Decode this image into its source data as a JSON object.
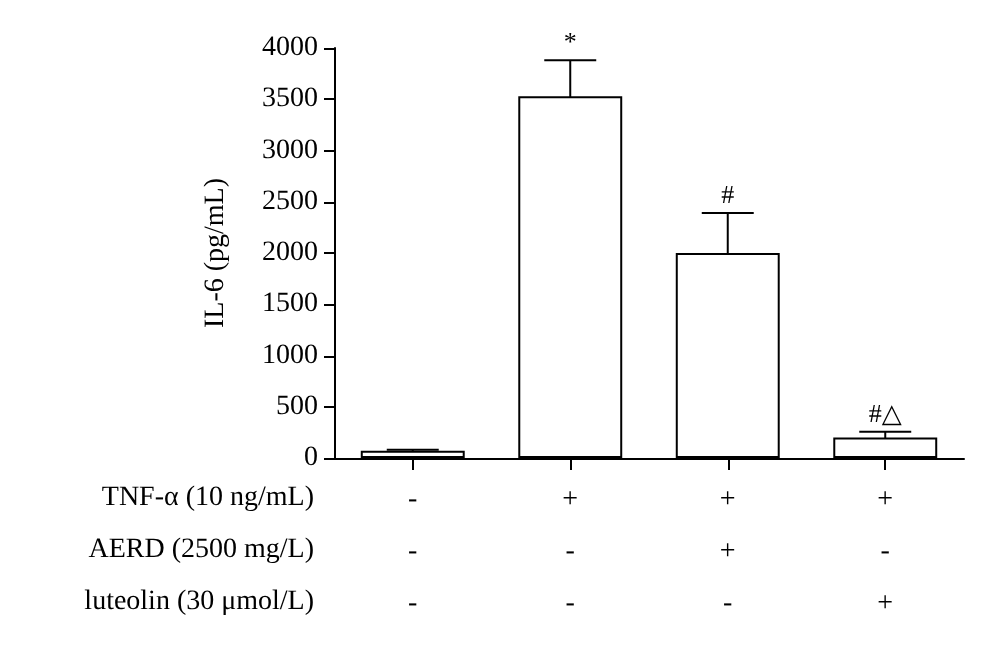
{
  "chart_data": {
    "type": "bar",
    "ylabel": "IL-6 (pg/mL)",
    "categories": [
      "-\n-\n-",
      "+\n-\n-",
      "+\n+\n-",
      "+\n-\n+"
    ],
    "values": [
      70,
      3530,
      2000,
      200
    ],
    "errors": [
      10,
      350,
      390,
      55
    ],
    "value_labels": [
      null,
      "*",
      "#",
      "#△"
    ],
    "color": "#ffffff",
    "annotations": [
      "TNF-α (10 ng/mL)",
      "AERD (2500 mg/L)",
      "luteolin (30 μmol/L)"
    ],
    "ylim": [
      0,
      4000
    ],
    "yticks": [
      0,
      500,
      1000,
      1500,
      2000,
      2500,
      3000,
      3500,
      4000
    ],
    "grid": false
  }
}
